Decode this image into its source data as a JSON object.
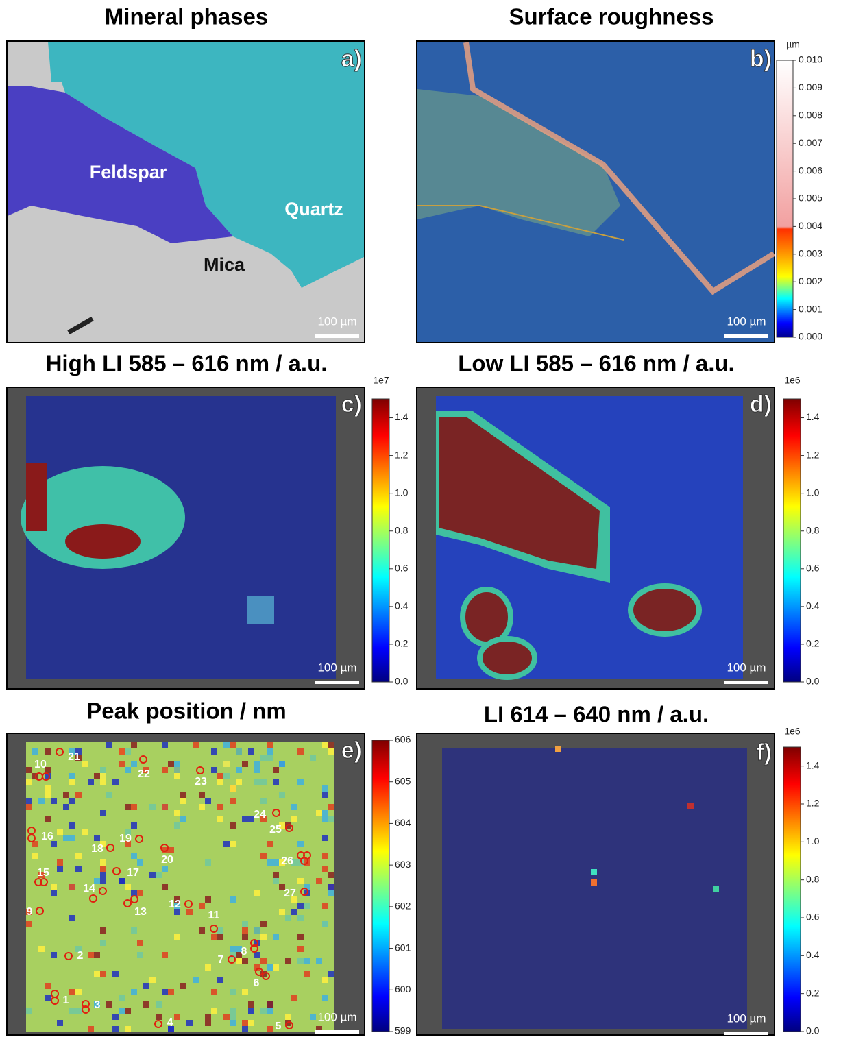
{
  "panels": [
    {
      "label": "a)",
      "title": "Mineral phases",
      "annotations": [
        "Feldspar",
        "Quartz",
        "Mica"
      ],
      "scale_bar": "100 µm"
    },
    {
      "label": "b)",
      "title": "Surface roughness",
      "scale_bar": "100 µm",
      "colorbar": {
        "unit": "µm",
        "lim": [
          0,
          0.01
        ],
        "ticks": [
          {
            "value": 0,
            "label": "0.000"
          },
          {
            "value": 0.001,
            "label": "0.001"
          },
          {
            "value": 0.002,
            "label": "0.002"
          },
          {
            "value": 0.003,
            "label": "0.003"
          },
          {
            "value": 0.004,
            "label": "0.004"
          },
          {
            "value": 0.005,
            "label": "0.005"
          },
          {
            "value": 0.006,
            "label": "0.006"
          },
          {
            "value": 0.007,
            "label": "0.007"
          },
          {
            "value": 0.008,
            "label": "0.008"
          },
          {
            "value": 0.009,
            "label": "0.009"
          },
          {
            "value": 0.01,
            "label": "0.010"
          }
        ]
      }
    },
    {
      "label": "c)",
      "title": "High LI 585 – 616 nm / a.u.",
      "scale_bar": "100 µm",
      "colorbar": {
        "unit": "1e7",
        "lim": [
          0,
          1.5
        ],
        "ticks": [
          {
            "value": 0,
            "label": "0.0"
          },
          0.2,
          0.4,
          0.6,
          0.8,
          {
            "value": 1,
            "label": "1.0"
          },
          1.2,
          1.4
        ]
      }
    },
    {
      "label": "d)",
      "title": "Low LI 585 – 616 nm / a.u.",
      "scale_bar": "100 µm",
      "colorbar": {
        "unit": "1e6",
        "lim": [
          0,
          1.5
        ],
        "ticks": [
          {
            "value": 0,
            "label": "0.0"
          },
          0.2,
          0.4,
          0.6,
          0.8,
          {
            "value": 1,
            "label": "1.0"
          },
          1.2,
          1.4
        ]
      }
    },
    {
      "label": "e)",
      "title": "Peak position / nm",
      "scale_bar": "100 µm",
      "colorbar": {
        "lim": [
          599,
          606
        ],
        "ticks": [
          599,
          600,
          601,
          602,
          603,
          604,
          605,
          606
        ]
      },
      "points": [
        "1",
        "2",
        "3",
        "4",
        "5",
        "6",
        "7",
        "8",
        "9",
        "10",
        "11",
        "12",
        "13",
        "14",
        "15",
        "16",
        "17",
        "18",
        "19",
        "20",
        "21",
        "22",
        "23",
        "24",
        "25",
        "26",
        "27"
      ]
    },
    {
      "label": "f)",
      "title": "LI 614 – 640 nm / a.u.",
      "scale_bar": "100 µm",
      "colorbar": {
        "unit": "1e6",
        "lim": [
          0,
          1.5
        ],
        "ticks": [
          {
            "value": 0,
            "label": "0.0"
          },
          0.2,
          0.4,
          0.6,
          0.8,
          {
            "value": 1,
            "label": "1.0"
          },
          1.2,
          1.4
        ]
      }
    }
  ]
}
